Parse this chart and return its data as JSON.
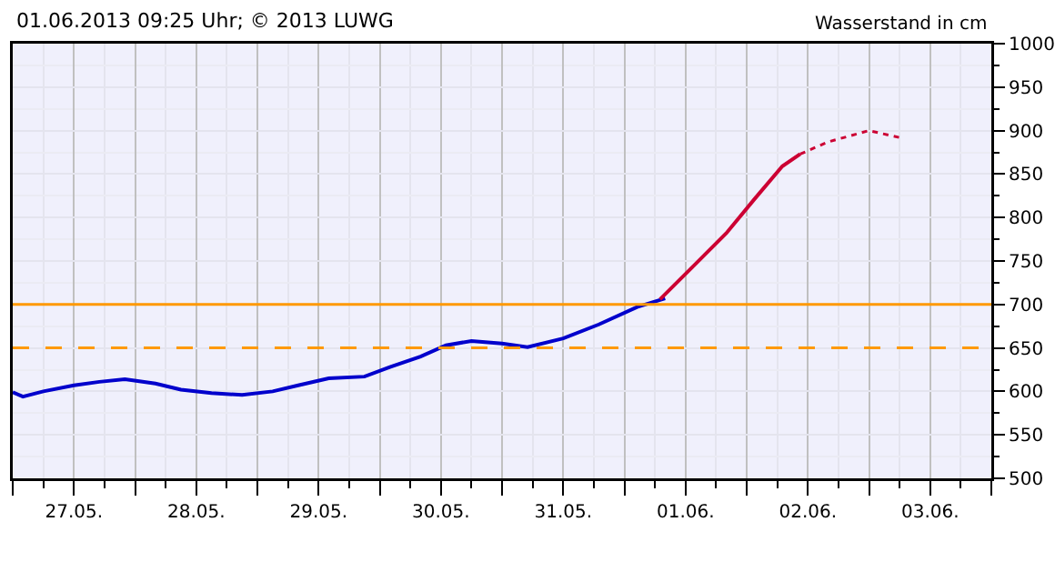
{
  "chart_data": {
    "type": "line",
    "title": "01.06.2013 09:25 Uhr; © 2013 LUWG",
    "ylabel": "Wasserstand in cm",
    "series": [
      {
        "color": "#0000cc",
        "line_style": "solid",
        "x": [
          "2013-05-27T00:00",
          "2013-05-27T02:00",
          "2013-05-27T06:00",
          "2013-05-27T12:00",
          "2013-05-27T17:00",
          "2013-05-27T22:00",
          "2013-05-28T04:00",
          "2013-05-28T09:00",
          "2013-05-28T15:00",
          "2013-05-28T21:00",
          "2013-05-29T03:00",
          "2013-05-29T08:00",
          "2013-05-29T14:00",
          "2013-05-29T21:00",
          "2013-05-30T02:00",
          "2013-05-30T08:00",
          "2013-05-30T13:00",
          "2013-05-30T18:00",
          "2013-05-31T00:00",
          "2013-05-31T05:00",
          "2013-05-31T12:00",
          "2013-05-31T19:00",
          "2013-06-01T02:30",
          "2013-06-01T08:00"
        ],
        "values": [
          599,
          594,
          600,
          607,
          611,
          614,
          609,
          602,
          598,
          596,
          600,
          607,
          615,
          617,
          628,
          640,
          653,
          658,
          655,
          651,
          661,
          677,
          697,
          707
        ]
      },
      {
        "color": "#cc0033",
        "line_style": "solid",
        "x": [
          "2013-06-01T07:00",
          "2013-06-01T13:00",
          "2013-06-01T20:00",
          "2013-06-02T01:30",
          "2013-06-02T07:00",
          "2013-06-02T10:30"
        ],
        "values": [
          706,
          741,
          782,
          821,
          859,
          873
        ]
      },
      {
        "color": "#cc0033",
        "line_style": "dotted",
        "x": [
          "2013-06-02T10:30",
          "2013-06-02T16:00",
          "2013-06-03T00:00",
          "2013-06-03T06:00"
        ],
        "values": [
          873,
          887,
          900,
          892
        ]
      }
    ],
    "xlim": [
      "2013-05-27T00:00",
      "2013-06-04T00:00"
    ],
    "xticks": [
      {
        "value": "2013-05-27T00:00",
        "label": null
      },
      {
        "value": "2013-05-27T12:00",
        "label": "27.05."
      },
      {
        "value": "2013-05-28T00:00",
        "label": null
      },
      {
        "value": "2013-05-28T12:00",
        "label": "28.05."
      },
      {
        "value": "2013-05-29T00:00",
        "label": null
      },
      {
        "value": "2013-05-29T12:00",
        "label": "29.05."
      },
      {
        "value": "2013-05-30T00:00",
        "label": null
      },
      {
        "value": "2013-05-30T12:00",
        "label": "30.05."
      },
      {
        "value": "2013-05-31T00:00",
        "label": null
      },
      {
        "value": "2013-05-31T12:00",
        "label": "31.05."
      },
      {
        "value": "2013-06-01T00:00",
        "label": null
      },
      {
        "value": "2013-06-01T12:00",
        "label": "01.06."
      },
      {
        "value": "2013-06-02T00:00",
        "label": null
      },
      {
        "value": "2013-06-02T12:00",
        "label": "02.06."
      },
      {
        "value": "2013-06-03T00:00",
        "label": null
      },
      {
        "value": "2013-06-03T12:00",
        "label": "03.06."
      },
      {
        "value": "2013-06-04T00:00",
        "label": null
      }
    ],
    "ylim": [
      500,
      1000
    ],
    "yticks": [
      500,
      550,
      600,
      650,
      700,
      750,
      800,
      850,
      900,
      950,
      1000
    ],
    "ref_lines": [
      {
        "axis": "y",
        "value": 700,
        "label": null,
        "color": "#ff9900",
        "line_style": "solid"
      },
      {
        "axis": "y",
        "value": 650,
        "label": null,
        "color": "#ff9900",
        "line_style": "dashed"
      }
    ],
    "grid": true,
    "marker": "none"
  }
}
